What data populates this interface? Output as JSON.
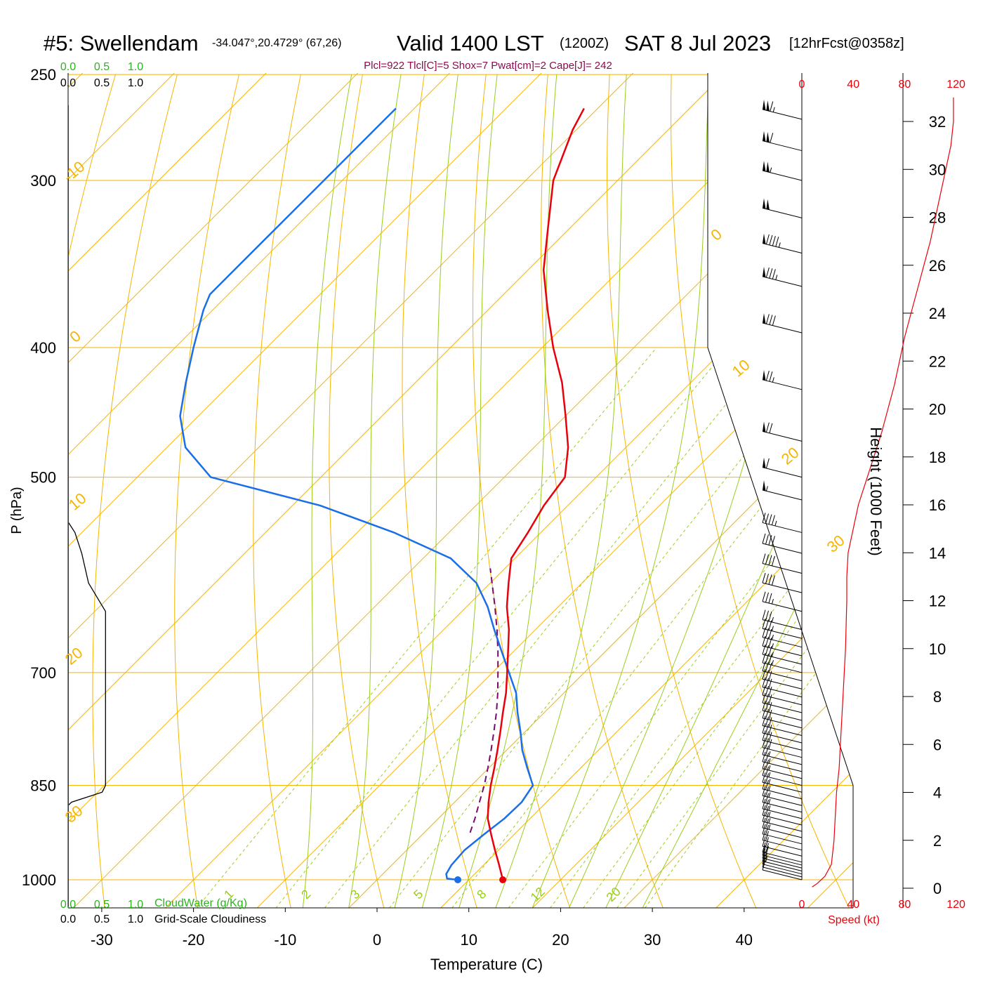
{
  "header": {
    "station": "#5: Swellendam",
    "coords": "-34.047°,20.4729° (67,26)",
    "valid": "Valid 1400 LST",
    "zulu": "(1200Z)",
    "date": "SAT 8 Jul 2023",
    "forecast": "[12hrFcst@0358z]",
    "indices": "Plcl=922 Tlcl[C]=5 Shox=7 Pwat[cm]=2 Cape[J]= 242"
  },
  "colors": {
    "temperature": "#e8000b",
    "dewpoint": "#1a6fe8",
    "parcel": "#7a0a6e",
    "isotherm": "#f5b500",
    "dry_adiabat": "#f5b500",
    "moist_adiabat": "#9acd1f",
    "mixing_ratio": "#9acd1f",
    "cloudwater": "#2bb31f",
    "speed": "#e8000b",
    "title_index": "#8b0a50"
  },
  "chart_data": {
    "type": "skew-t",
    "title": "#5: Swellendam Valid 1400 LST (1200Z) SAT 8 Jul 2023",
    "xlabel": "Temperature (C)",
    "ylabel": "P (hPa)",
    "y2label": "Height (1000 Feet)",
    "speed_label": "Speed (kt)",
    "cloudwater_label": "CloudWater (g/Kg)",
    "cloudiness_label": "Grid-Scale Cloudiness",
    "x_ticks": [
      "-30",
      "-20",
      "-10",
      "0",
      "10",
      "20",
      "30",
      "40"
    ],
    "xlim": [
      -35,
      45
    ],
    "p_ticks": [
      "250",
      "300",
      "400",
      "500",
      "700",
      "850",
      "1000"
    ],
    "plim": [
      1050,
      250
    ],
    "height_ticks": [
      "0",
      "2",
      "4",
      "6",
      "8",
      "10",
      "12",
      "14",
      "16",
      "18",
      "20",
      "22",
      "24",
      "26",
      "28",
      "30",
      "32"
    ],
    "speed_ticks": [
      "0",
      "40",
      "80",
      "120"
    ],
    "cloud_ticks": [
      "0.0",
      "0.5",
      "1.0"
    ],
    "dry_adiabat_labels": [
      "-10",
      "0",
      "10",
      "20",
      "30",
      "10",
      "20",
      "30",
      "0"
    ],
    "moist_adiabat_labels": [
      "5",
      "8",
      "12",
      "20"
    ],
    "mixing_ratio_labels": [
      "1",
      "2",
      "3"
    ],
    "temperature": {
      "p": [
        1000,
        975,
        950,
        925,
        900,
        875,
        850,
        825,
        800,
        775,
        750,
        725,
        700,
        675,
        650,
        625,
        600,
        575,
        550,
        525,
        500,
        475,
        450,
        425,
        400,
        375,
        350,
        325,
        300,
        275,
        265
      ],
      "t": [
        13.7,
        11.7,
        9.6,
        7.5,
        5.4,
        3.7,
        2.1,
        0.6,
        -1.0,
        -2.7,
        -4.5,
        -6.3,
        -8.4,
        -10.6,
        -12.9,
        -15.6,
        -18.0,
        -20.4,
        -21.4,
        -22.6,
        -23.4,
        -26.3,
        -30.0,
        -34.0,
        -38.8,
        -43.5,
        -48.3,
        -52.5,
        -57.0,
        -60.4,
        -61.5
      ]
    },
    "dewpoint": {
      "p": [
        1000,
        998,
        990,
        975,
        950,
        925,
        900,
        875,
        850,
        825,
        800,
        775,
        750,
        725,
        700,
        675,
        650,
        625,
        600,
        575,
        550,
        525,
        500,
        475,
        450,
        425,
        400,
        375,
        365,
        350,
        325,
        300,
        275,
        265
      ],
      "td": [
        8.8,
        7.5,
        6.9,
        6.5,
        6.3,
        6.7,
        7.2,
        7.3,
        6.7,
        4.2,
        1.7,
        -0.5,
        -2.9,
        -5.2,
        -8.2,
        -11.3,
        -14.5,
        -17.7,
        -21.5,
        -27.0,
        -36.0,
        -47.0,
        -62.0,
        -68.0,
        -72.0,
        -75.0,
        -78.0,
        -81.0,
        -82.0,
        -82.0,
        -82.0,
        -82.0,
        -82.0,
        -82.0
      ]
    },
    "parcel": {
      "p": [
        922,
        900,
        875,
        850,
        825,
        800,
        775,
        750,
        725,
        700,
        675,
        650,
        625,
        600,
        585
      ],
      "t": [
        5.0,
        4.0,
        2.7,
        1.4,
        -0.1,
        -1.7,
        -3.4,
        -5.2,
        -7.2,
        -9.4,
        -11.7,
        -14.2,
        -16.9,
        -19.8,
        -21.6
      ]
    },
    "wind_speed": {
      "height_kft": [
        0.05,
        0.2,
        0.5,
        1.0,
        2.0,
        3.0,
        4.0,
        5.0,
        6.0,
        8.0,
        10.0,
        12.0,
        13.0,
        14.0,
        15.0,
        16.0,
        17.0,
        18.0,
        19.0,
        20.0,
        21.0,
        22.0,
        23.0,
        24.0,
        25.0,
        26.0,
        27.0,
        28.0,
        29.0,
        30.0,
        31.0,
        32.0,
        33.0
      ],
      "kt": [
        8,
        12,
        18,
        23,
        25,
        26,
        27,
        29,
        30,
        32,
        34,
        35,
        35,
        36,
        40,
        44,
        50,
        56,
        62,
        67,
        72,
        76,
        80,
        85,
        90,
        95,
        100,
        104,
        108,
        112,
        116,
        118,
        118
      ]
    },
    "wind_barbs": {
      "p": [
        1000,
        995,
        990,
        985,
        980,
        975,
        970,
        960,
        950,
        940,
        930,
        920,
        910,
        900,
        890,
        880,
        870,
        860,
        850,
        840,
        830,
        820,
        810,
        800,
        790,
        780,
        770,
        760,
        750,
        740,
        730,
        720,
        710,
        700,
        690,
        680,
        670,
        660,
        650,
        630,
        610,
        590,
        570,
        550,
        520,
        500,
        470,
        430,
        390,
        360,
        340,
        320,
        300,
        285,
        270
      ],
      "kt": [
        10,
        12,
        14,
        16,
        18,
        20,
        22,
        23,
        24,
        24,
        25,
        25,
        25,
        26,
        26,
        26,
        27,
        27,
        28,
        28,
        29,
        29,
        30,
        30,
        31,
        31,
        32,
        32,
        33,
        33,
        34,
        34,
        34,
        35,
        35,
        35,
        35,
        36,
        36,
        38,
        40,
        40,
        42,
        45,
        55,
        60,
        70,
        75,
        80,
        85,
        95,
        100,
        105,
        110,
        115
      ]
    },
    "cloudiness": {
      "p": [
        1000,
        880,
        875,
        860,
        850,
        700,
        640,
        630,
        600,
        570,
        550,
        540
      ],
      "frac": [
        0.0,
        0.0,
        0.05,
        0.5,
        0.55,
        0.55,
        0.55,
        0.55,
        0.3,
        0.2,
        0.1,
        0.0
      ]
    }
  }
}
